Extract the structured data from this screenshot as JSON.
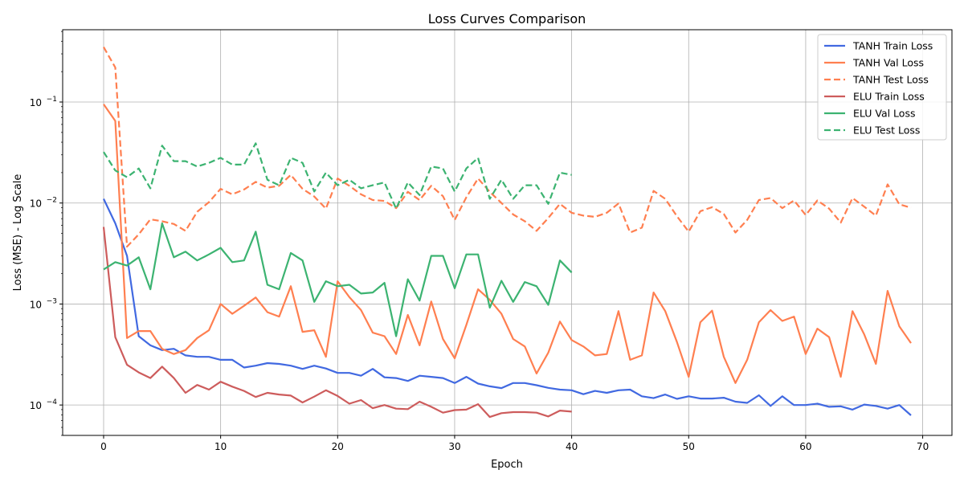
{
  "chart_data": {
    "type": "line",
    "title": "Loss Curves Comparison",
    "xlabel": "Epoch",
    "ylabel": "Loss (MSE) - Log Scale",
    "xlim": [
      -3.5,
      72.5
    ],
    "ylim": [
      5e-05,
      0.52
    ],
    "yscale": "log",
    "xticks": [
      0,
      10,
      20,
      30,
      40,
      50,
      60,
      70
    ],
    "yticks": [
      {
        "value": 0.0001,
        "mant": "10",
        "exp": "−4"
      },
      {
        "value": 0.001,
        "mant": "10",
        "exp": "−3"
      },
      {
        "value": 0.01,
        "mant": "10",
        "exp": "−2"
      },
      {
        "value": 0.1,
        "mant": "10",
        "exp": "−1"
      }
    ],
    "grid": true,
    "legend": "top-right",
    "series": [
      {
        "name": "TANH Train Loss",
        "color": "#4169e1",
        "dash": "solid",
        "x0": 0,
        "values": [
          0.011,
          0.0063,
          0.003,
          0.00048,
          0.00039,
          0.00035,
          0.00036,
          0.00031,
          0.0003,
          0.0003,
          0.00028,
          0.00028,
          0.000235,
          0.000245,
          0.00026,
          0.000255,
          0.000245,
          0.000228,
          0.000245,
          0.00023,
          0.000208,
          0.000208,
          0.000195,
          0.000228,
          0.000188,
          0.000185,
          0.000173,
          0.000195,
          0.00019,
          0.000185,
          0.000165,
          0.00019,
          0.000163,
          0.000153,
          0.000147,
          0.000165,
          0.000165,
          0.000157,
          0.000148,
          0.000142,
          0.00014,
          0.000128,
          0.000138,
          0.000132,
          0.00014,
          0.000142,
          0.000122,
          0.000117,
          0.000127,
          0.000115,
          0.000122,
          0.000116,
          0.000116,
          0.000118,
          0.000108,
          0.000105,
          0.000125,
          9.8e-05,
          0.000122,
          0.0001,
          0.0001,
          0.000103,
          9.6e-05,
          9.7e-05,
          9e-05,
          0.000101,
          9.8e-05,
          9.2e-05,
          0.0001,
          7.9e-05
        ]
      },
      {
        "name": "TANH Val Loss",
        "color": "#ff7f50",
        "dash": "solid",
        "x0": 0,
        "values": [
          0.095,
          0.065,
          0.00046,
          0.00054,
          0.00054,
          0.00036,
          0.00032,
          0.00035,
          0.00046,
          0.00055,
          0.001,
          0.0008,
          0.00096,
          0.00116,
          0.00083,
          0.00075,
          0.0015,
          0.00053,
          0.00055,
          0.0003,
          0.00168,
          0.00117,
          0.00087,
          0.00052,
          0.00048,
          0.00032,
          0.00078,
          0.00039,
          0.00106,
          0.00045,
          0.00029,
          0.00062,
          0.0014,
          0.0011,
          0.0008,
          0.00045,
          0.00038,
          0.000205,
          0.00033,
          0.00067,
          0.00044,
          0.00038,
          0.00031,
          0.00032,
          0.00085,
          0.00028,
          0.00031,
          0.0013,
          0.00085,
          0.00042,
          0.00019,
          0.00066,
          0.00086,
          0.0003,
          0.000165,
          0.00028,
          0.00066,
          0.00087,
          0.00068,
          0.00075,
          0.00032,
          0.00057,
          0.00047,
          0.00019,
          0.00085,
          0.0005,
          0.000255,
          0.00135,
          0.0006,
          0.00041
        ]
      },
      {
        "name": "TANH Test Loss",
        "color": "#ff7f50",
        "dash": "dashed",
        "x0": 0,
        "values": [
          0.35,
          0.22,
          0.0037,
          0.0049,
          0.0069,
          0.0066,
          0.0062,
          0.0053,
          0.0082,
          0.0102,
          0.0138,
          0.0122,
          0.0136,
          0.0162,
          0.0142,
          0.0148,
          0.019,
          0.0138,
          0.0116,
          0.0088,
          0.0175,
          0.0148,
          0.0122,
          0.0107,
          0.0105,
          0.0089,
          0.0129,
          0.0107,
          0.0148,
          0.0117,
          0.0068,
          0.0114,
          0.0175,
          0.0129,
          0.01,
          0.0077,
          0.0066,
          0.0053,
          0.0071,
          0.0098,
          0.008,
          0.0075,
          0.0073,
          0.008,
          0.0099,
          0.0051,
          0.0057,
          0.0132,
          0.011,
          0.0074,
          0.0052,
          0.0083,
          0.0091,
          0.0078,
          0.0051,
          0.0068,
          0.0107,
          0.0112,
          0.0089,
          0.0106,
          0.0076,
          0.0106,
          0.0088,
          0.0064,
          0.0112,
          0.0092,
          0.0075,
          0.0153,
          0.0097,
          0.009
        ]
      },
      {
        "name": "ELU Train Loss",
        "color": "#cd5c5c",
        "dash": "solid",
        "x0": 0,
        "values": [
          0.0058,
          0.00047,
          0.00025,
          0.00021,
          0.000185,
          0.00024,
          0.000185,
          0.000132,
          0.000158,
          0.000142,
          0.00017,
          0.000152,
          0.000138,
          0.00012,
          0.000132,
          0.000127,
          0.000124,
          0.000106,
          0.000121,
          0.00014,
          0.000123,
          0.000103,
          0.000112,
          9.3e-05,
          0.0001,
          9.2e-05,
          9.1e-05,
          0.000108,
          9.6e-05,
          8.4e-05,
          8.9e-05,
          9e-05,
          0.000102,
          7.6e-05,
          8.3e-05,
          8.5e-05,
          8.5e-05,
          8.4e-05,
          7.7e-05,
          8.8e-05,
          8.6e-05
        ]
      },
      {
        "name": "ELU Val Loss",
        "color": "#3cb371",
        "dash": "solid",
        "x0": 0,
        "values": [
          0.0022,
          0.0026,
          0.0024,
          0.0029,
          0.0014,
          0.0063,
          0.0029,
          0.0033,
          0.0027,
          0.0031,
          0.0036,
          0.0026,
          0.0027,
          0.0052,
          0.00155,
          0.0014,
          0.0032,
          0.0027,
          0.00105,
          0.00168,
          0.0015,
          0.00155,
          0.00127,
          0.0013,
          0.00162,
          0.00048,
          0.00176,
          0.00108,
          0.003,
          0.003,
          0.00143,
          0.0031,
          0.0031,
          0.00092,
          0.0017,
          0.00105,
          0.00165,
          0.0015,
          0.00098,
          0.0027,
          0.00205
        ]
      },
      {
        "name": "ELU Test Loss",
        "color": "#3cb371",
        "dash": "dashed",
        "x0": 0,
        "values": [
          0.032,
          0.021,
          0.018,
          0.022,
          0.014,
          0.037,
          0.026,
          0.026,
          0.023,
          0.025,
          0.028,
          0.024,
          0.024,
          0.039,
          0.017,
          0.015,
          0.028,
          0.025,
          0.013,
          0.02,
          0.015,
          0.017,
          0.014,
          0.015,
          0.016,
          0.0088,
          0.016,
          0.012,
          0.023,
          0.022,
          0.013,
          0.022,
          0.028,
          0.011,
          0.017,
          0.011,
          0.015,
          0.015,
          0.0098,
          0.02,
          0.019
        ]
      }
    ]
  }
}
